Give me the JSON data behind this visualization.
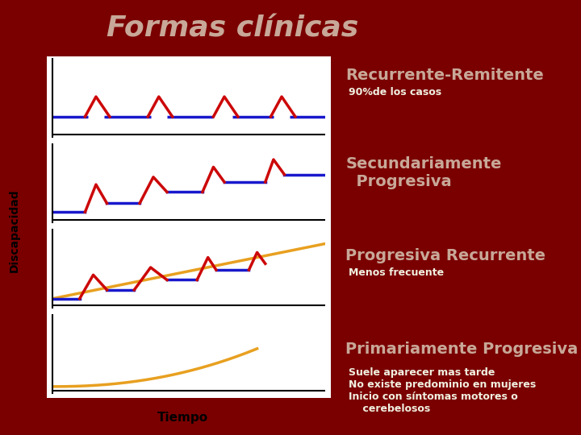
{
  "title": "Formas clínicas",
  "title_color": "#C8A898",
  "bg_color": "#7A0000",
  "panel_bg": "#FFFFFF",
  "ylabel": "Discapacidad",
  "xlabel": "Tiempo",
  "sections": [
    {
      "title": "Recurrente-Remitente",
      "subtitle": "90%de los casos",
      "title_color": "#C8A898",
      "subtitle_color": "#F0F0E0",
      "subtitle_bold": true
    },
    {
      "title": "Secundariamente\n  Progresiva",
      "subtitle": "",
      "title_color": "#C8A898",
      "subtitle_color": "#F0F0E0",
      "subtitle_bold": false
    },
    {
      "title": "Progresiva Recurrente",
      "subtitle": "Menos frecuente",
      "title_color": "#C8A898",
      "subtitle_color": "#F0F0E0",
      "subtitle_bold": true
    },
    {
      "title": "Primariamente Progresiva",
      "subtitle": "Suele aparecer mas tarde\nNo existe predominio en mujeres\nInicio con síntomas motores o\n    cerebelosos",
      "title_color": "#C8A898",
      "subtitle_color": "#F0F0E0",
      "subtitle_bold": true
    }
  ],
  "blue_color": "#1818CC",
  "red_color": "#CC0808",
  "orange_color": "#E8A020",
  "title_fontsize": 26,
  "section_title_fontsize": 14,
  "subtitle_fontsize": 9,
  "ylabel_fontsize": 10,
  "xlabel_fontsize": 11
}
